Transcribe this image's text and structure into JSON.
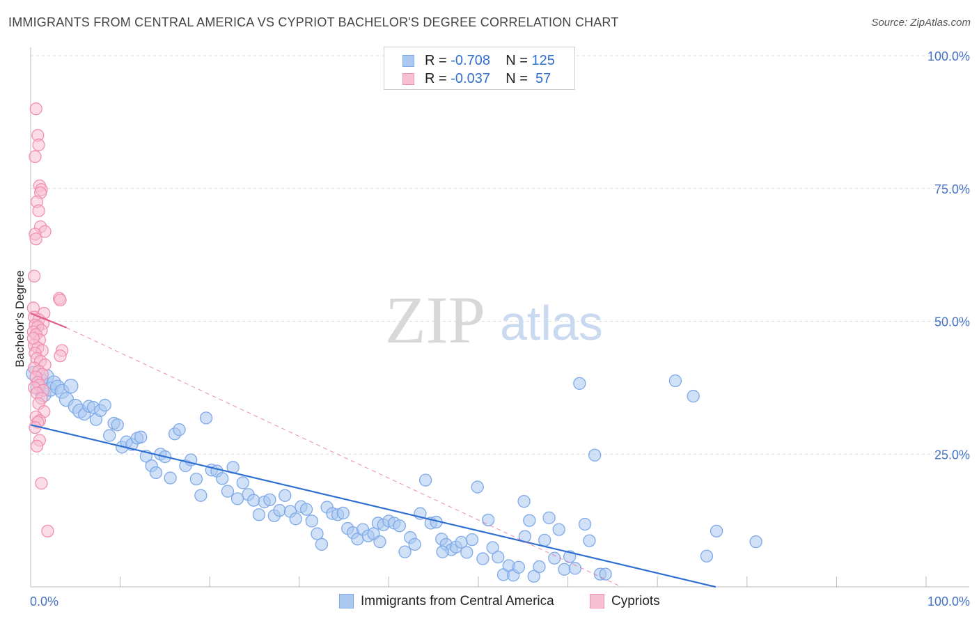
{
  "chart_data": {
    "type": "scatter",
    "title": "IMMIGRANTS FROM CENTRAL AMERICA VS CYPRIOT BACHELOR'S DEGREE CORRELATION CHART",
    "source": "Source: ZipAtlas.com",
    "xlabel": "",
    "ylabel": "Bachelor's Degree",
    "xlim": [
      0,
      100
    ],
    "ylim": [
      0,
      100
    ],
    "x_tick_labels": [
      {
        "value": 0,
        "label": "0.0%"
      },
      {
        "value": 100,
        "label": "100.0%"
      }
    ],
    "y_tick_labels": [
      {
        "value": 100,
        "label": "100.0%"
      },
      {
        "value": 75,
        "label": "75.0%"
      },
      {
        "value": 50,
        "label": "50.0%"
      },
      {
        "value": 25,
        "label": "25.0%"
      }
    ],
    "watermark": {
      "zip": "ZIP",
      "atlas": "atlas"
    },
    "legend_top": [
      {
        "series": "Immigrants from Central America",
        "r_label": "R = ",
        "r": "-0.708",
        "n_label": "N = ",
        "n": "125"
      },
      {
        "series": "Cypriots",
        "r_label": "R = ",
        "r": "-0.037",
        "n_label": "N = ",
        "n": " 57"
      }
    ],
    "series": [
      {
        "name": "Immigrants from Central America",
        "color": "#7ea9e8",
        "fill": "#aac8f0",
        "line_color": "#2f6fd0",
        "trend": {
          "x": [
            0,
            76.5
          ],
          "y": [
            30.5,
            0
          ]
        },
        "points": [
          [
            0.3,
            40.2
          ],
          [
            0.8,
            37.5
          ],
          [
            1.2,
            38.8
          ],
          [
            1.5,
            36.2
          ],
          [
            1.8,
            39.6
          ],
          [
            2.2,
            37.2
          ],
          [
            2.6,
            38.4
          ],
          [
            3.0,
            37.6
          ],
          [
            3.5,
            36.8
          ],
          [
            4.0,
            35.3
          ],
          [
            4.5,
            37.8
          ],
          [
            5.0,
            34.0
          ],
          [
            5.5,
            33.1
          ],
          [
            6.0,
            32.5
          ],
          [
            6.5,
            34.0
          ],
          [
            7.0,
            33.8
          ],
          [
            7.3,
            31.5
          ],
          [
            7.8,
            33.2
          ],
          [
            8.3,
            34.2
          ],
          [
            8.8,
            28.5
          ],
          [
            9.3,
            30.8
          ],
          [
            9.7,
            30.5
          ],
          [
            10.2,
            26.3
          ],
          [
            10.7,
            27.3
          ],
          [
            11.3,
            26.8
          ],
          [
            11.9,
            28.0
          ],
          [
            12.3,
            28.2
          ],
          [
            12.9,
            24.6
          ],
          [
            13.5,
            22.8
          ],
          [
            14.0,
            21.5
          ],
          [
            14.5,
            25.0
          ],
          [
            15.0,
            24.5
          ],
          [
            15.6,
            20.5
          ],
          [
            16.1,
            28.8
          ],
          [
            16.6,
            29.6
          ],
          [
            17.3,
            22.8
          ],
          [
            17.9,
            23.9
          ],
          [
            18.5,
            20.3
          ],
          [
            19.0,
            17.2
          ],
          [
            19.6,
            31.8
          ],
          [
            20.2,
            22.0
          ],
          [
            20.8,
            21.8
          ],
          [
            21.4,
            20.4
          ],
          [
            22.0,
            18.0
          ],
          [
            22.6,
            22.5
          ],
          [
            23.1,
            16.6
          ],
          [
            23.7,
            19.6
          ],
          [
            24.3,
            17.4
          ],
          [
            24.9,
            16.3
          ],
          [
            25.5,
            13.6
          ],
          [
            26.1,
            16.0
          ],
          [
            26.7,
            16.4
          ],
          [
            27.2,
            13.4
          ],
          [
            27.8,
            14.4
          ],
          [
            28.4,
            17.2
          ],
          [
            29.0,
            14.2
          ],
          [
            29.6,
            12.8
          ],
          [
            30.2,
            15.1
          ],
          [
            30.8,
            14.6
          ],
          [
            31.4,
            12.4
          ],
          [
            32.0,
            10.0
          ],
          [
            32.5,
            8.0
          ],
          [
            33.1,
            15.0
          ],
          [
            33.7,
            13.8
          ],
          [
            34.3,
            13.6
          ],
          [
            34.9,
            13.9
          ],
          [
            35.4,
            11.0
          ],
          [
            36.0,
            10.2
          ],
          [
            36.5,
            9.0
          ],
          [
            37.1,
            10.8
          ],
          [
            37.7,
            9.6
          ],
          [
            38.3,
            10.0
          ],
          [
            38.8,
            12.0
          ],
          [
            39.4,
            11.7
          ],
          [
            40.0,
            12.4
          ],
          [
            40.6,
            12.0
          ],
          [
            41.2,
            11.5
          ],
          [
            41.8,
            6.6
          ],
          [
            42.4,
            9.3
          ],
          [
            42.9,
            8.0
          ],
          [
            43.5,
            13.8
          ],
          [
            44.1,
            20.1
          ],
          [
            44.7,
            12.0
          ],
          [
            45.3,
            12.2
          ],
          [
            45.9,
            9.0
          ],
          [
            46.4,
            8.0
          ],
          [
            47.0,
            7.0
          ],
          [
            47.5,
            7.5
          ],
          [
            48.1,
            8.4
          ],
          [
            48.7,
            6.5
          ],
          [
            49.3,
            8.9
          ],
          [
            49.9,
            18.8
          ],
          [
            50.5,
            5.3
          ],
          [
            51.1,
            12.6
          ],
          [
            51.6,
            7.4
          ],
          [
            52.2,
            5.6
          ],
          [
            52.8,
            2.3
          ],
          [
            53.4,
            4.0
          ],
          [
            53.9,
            2.2
          ],
          [
            54.5,
            3.7
          ],
          [
            55.1,
            16.1
          ],
          [
            55.7,
            12.5
          ],
          [
            56.2,
            2.0
          ],
          [
            56.8,
            3.8
          ],
          [
            57.4,
            8.8
          ],
          [
            57.9,
            13.0
          ],
          [
            58.5,
            5.4
          ],
          [
            59.0,
            10.8
          ],
          [
            59.6,
            3.3
          ],
          [
            60.2,
            5.7
          ],
          [
            60.8,
            3.5
          ],
          [
            61.3,
            38.3
          ],
          [
            61.9,
            11.8
          ],
          [
            62.4,
            8.7
          ],
          [
            63.0,
            24.8
          ],
          [
            63.6,
            2.4
          ],
          [
            64.2,
            2.4
          ],
          [
            72.0,
            38.8
          ],
          [
            74.0,
            35.9
          ],
          [
            75.5,
            5.8
          ],
          [
            76.6,
            10.5
          ],
          [
            81.0,
            8.5
          ],
          [
            39.0,
            8.5
          ],
          [
            46.0,
            6.6
          ],
          [
            55.2,
            9.5
          ]
        ]
      },
      {
        "name": "Cypriots",
        "color": "#f08fb0",
        "fill": "#f8c0d3",
        "line_color": "#e05a8a",
        "trend": {
          "x": [
            0,
            4.0
          ],
          "y": [
            51.5,
            48.8
          ]
        },
        "trend_ext": {
          "x": [
            4.0,
            66.0
          ],
          "y": [
            48.8,
            0
          ]
        },
        "points": [
          [
            0.6,
            90.0
          ],
          [
            0.8,
            85.0
          ],
          [
            0.9,
            83.2
          ],
          [
            0.5,
            81.0
          ],
          [
            1.0,
            75.5
          ],
          [
            1.2,
            74.8
          ],
          [
            1.1,
            74.2
          ],
          [
            0.7,
            72.5
          ],
          [
            0.9,
            70.8
          ],
          [
            1.1,
            67.8
          ],
          [
            1.6,
            66.9
          ],
          [
            0.5,
            66.4
          ],
          [
            0.6,
            65.5
          ],
          [
            0.4,
            58.5
          ],
          [
            3.2,
            54.3
          ],
          [
            3.3,
            54.0
          ],
          [
            0.3,
            52.5
          ],
          [
            1.5,
            51.5
          ],
          [
            0.4,
            50.8
          ],
          [
            0.9,
            50.3
          ],
          [
            1.4,
            49.6
          ],
          [
            0.5,
            49.3
          ],
          [
            0.8,
            49.0
          ],
          [
            1.2,
            48.3
          ],
          [
            0.3,
            48.0
          ],
          [
            0.6,
            47.5
          ],
          [
            1.0,
            46.5
          ],
          [
            0.4,
            45.5
          ],
          [
            0.8,
            45.0
          ],
          [
            1.3,
            44.5
          ],
          [
            3.5,
            44.5
          ],
          [
            0.5,
            44.0
          ],
          [
            3.3,
            43.5
          ],
          [
            0.7,
            43.0
          ],
          [
            1.1,
            42.5
          ],
          [
            1.6,
            41.8
          ],
          [
            0.4,
            41.2
          ],
          [
            0.9,
            40.6
          ],
          [
            1.3,
            40.0
          ],
          [
            0.6,
            39.5
          ],
          [
            0.8,
            38.5
          ],
          [
            1.0,
            38.0
          ],
          [
            0.4,
            37.5
          ],
          [
            1.4,
            37.0
          ],
          [
            0.7,
            36.5
          ],
          [
            1.2,
            35.5
          ],
          [
            0.9,
            34.5
          ],
          [
            1.5,
            33.0
          ],
          [
            0.6,
            32.0
          ],
          [
            1.0,
            31.3
          ],
          [
            0.8,
            31.0
          ],
          [
            0.5,
            30.0
          ],
          [
            1.0,
            27.6
          ],
          [
            0.7,
            26.5
          ],
          [
            1.2,
            19.5
          ],
          [
            1.9,
            10.5
          ],
          [
            0.3,
            46.8
          ]
        ]
      }
    ]
  }
}
